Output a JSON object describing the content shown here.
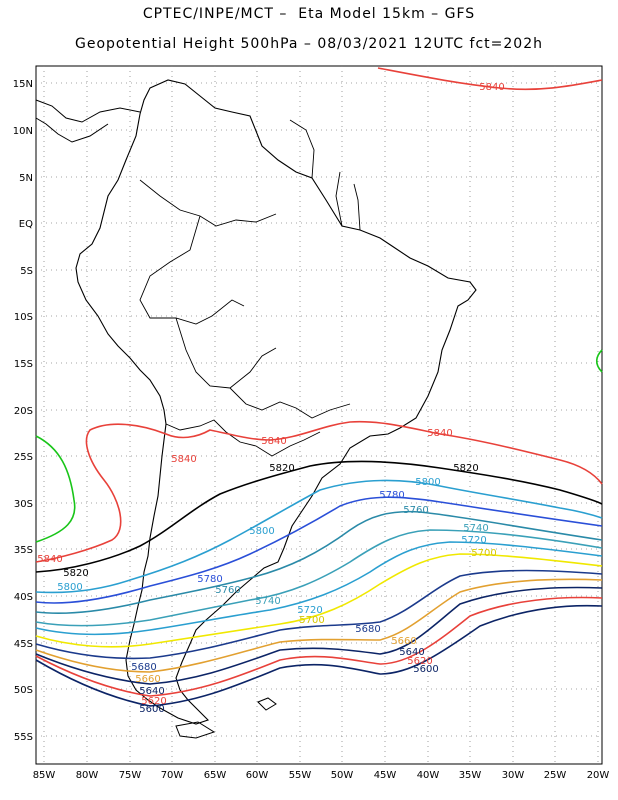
{
  "header": {
    "line1": "CPTEC/INPE/MCT –  Eta Model 15km – GFS",
    "line2": "Geopotential Height 500hPa – 08/03/2021 12UTC fct=202h"
  },
  "map": {
    "lon_range": [
      -86,
      -19.4
    ],
    "lat_range": [
      -59.5,
      17
    ],
    "lat_ticks": [
      "15N",
      "10N",
      "5N",
      "EQ",
      "5S",
      "10S",
      "15S",
      "20S",
      "25S",
      "30S",
      "35S",
      "40S",
      "45S",
      "50S",
      "55S"
    ],
    "lon_ticks": [
      "85W",
      "80W",
      "75W",
      "70W",
      "65W",
      "60W",
      "55W",
      "50W",
      "45W",
      "40W",
      "35W",
      "30W",
      "25W",
      "20W"
    ],
    "contours": [
      {
        "level": "5840",
        "color": "#e8413a",
        "labels": [
          "5840",
          "5840",
          "5840",
          "5840",
          "5840"
        ]
      },
      {
        "level": "5820",
        "color": "#000000",
        "labels": [
          "5820",
          "5820",
          "5820"
        ]
      },
      {
        "level": "5800",
        "color": "#2a9fd0",
        "labels": [
          "5800",
          "5800",
          "5800"
        ]
      },
      {
        "level": "5780",
        "color": "#2a4fd8",
        "labels": [
          "5780",
          "5780"
        ]
      },
      {
        "level": "5760",
        "color": "#2a8aa8",
        "labels": [
          "5760",
          "5760"
        ]
      },
      {
        "level": "5740",
        "color": "#3aa0b8",
        "labels": [
          "5740",
          "5740"
        ]
      },
      {
        "level": "5720",
        "color": "#2a9fd0",
        "labels": [
          "5720",
          "5720"
        ]
      },
      {
        "level": "5700",
        "color": "#f0e800",
        "labels": [
          "5700",
          "5700"
        ]
      },
      {
        "level": "5680",
        "color": "#1b3a8c",
        "labels": [
          "5680",
          "5680"
        ]
      },
      {
        "level": "5660",
        "color": "#e2a030",
        "labels": [
          "5660",
          "5660"
        ]
      },
      {
        "level": "5640",
        "color": "#0c2466",
        "labels": [
          "5640",
          "5640"
        ]
      },
      {
        "level": "5620",
        "color": "#e8413a",
        "labels": [
          "5620",
          "5620"
        ]
      },
      {
        "level": "5600",
        "color": "#0c2466",
        "labels": [
          "5600",
          "5600"
        ]
      },
      {
        "level": "5860",
        "color": "#19c519",
        "labels": []
      }
    ]
  }
}
